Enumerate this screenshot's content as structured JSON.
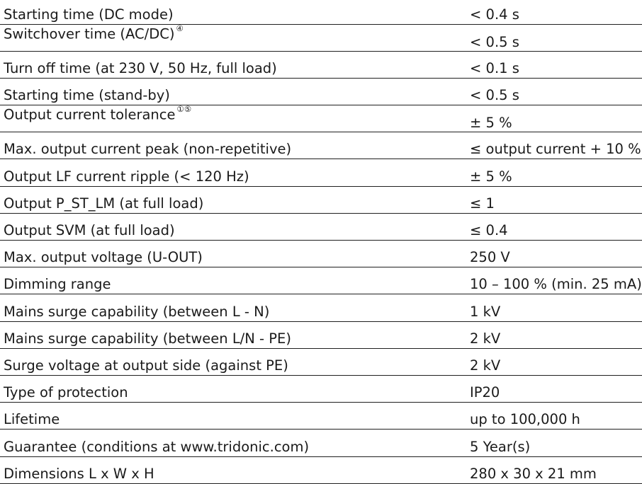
{
  "rows": [
    {
      "label": "Starting time (DC mode)",
      "note": "",
      "value": "< 0.4 s"
    },
    {
      "label": "Switchover time (AC/DC)",
      "note": "④",
      "value": "< 0.5 s"
    },
    {
      "label": "Turn off time (at 230 V, 50 Hz, full load)",
      "note": "",
      "value": "< 0.1 s"
    },
    {
      "label": "Starting time (stand-by)",
      "note": "",
      "value": "< 0.5 s"
    },
    {
      "label": "Output current tolerance",
      "note": "①⑤",
      "value": "± 5 %"
    },
    {
      "label": "Max. output current peak (non-repetitive)",
      "note": "",
      "value": "≤ output current + 10 %"
    },
    {
      "label": "Output LF current ripple (< 120 Hz)",
      "note": "",
      "value": "± 5 %"
    },
    {
      "label": "Output P_ST_LM (at full load)",
      "note": "",
      "value": "≤ 1"
    },
    {
      "label": "Output SVM (at full load)",
      "note": "",
      "value": "≤ 0.4"
    },
    {
      "label": "Max. output voltage (U-OUT)",
      "note": "",
      "value": "250 V"
    },
    {
      "label": "Dimming range",
      "note": "",
      "value": "10 – 100 % (min. 25 mA)"
    },
    {
      "label": "Mains surge capability (between L - N)",
      "note": "",
      "value": "1 kV"
    },
    {
      "label": "Mains surge capability (between L/N - PE)",
      "note": "",
      "value": "2 kV"
    },
    {
      "label": "Surge voltage at output side (against PE)",
      "note": "",
      "value": "2 kV"
    },
    {
      "label": "Type of protection",
      "note": "",
      "value": "IP20"
    },
    {
      "label": "Lifetime",
      "note": "",
      "value": "up to 100,000 h"
    },
    {
      "label": "Guarantee (conditions at www.tridonic.com)",
      "note": "",
      "value": "5 Year(s)"
    },
    {
      "label": "Dimensions L x W x H",
      "note": "",
      "value": "280 x 30 x 21 mm"
    }
  ]
}
